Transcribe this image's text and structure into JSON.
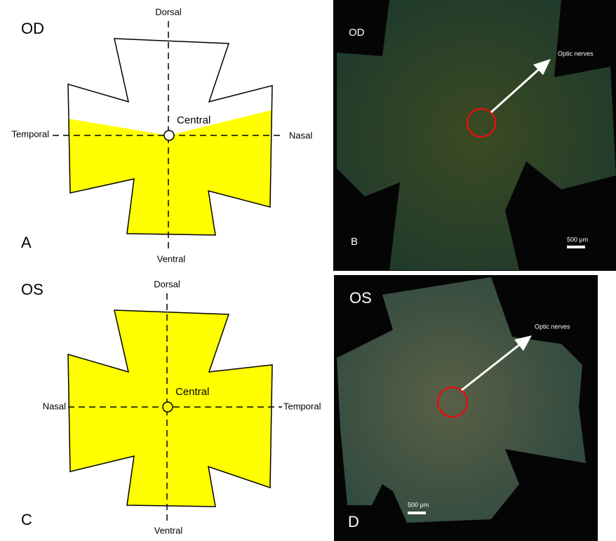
{
  "panels": [
    {
      "letter": "A",
      "eye": "OD",
      "top": "Dorsal",
      "center": "Central",
      "left": "Temporal",
      "right": "Nasal",
      "bottom": "Ventral"
    },
    {
      "letter": "B",
      "eye": "OD",
      "pointer": "Optic nerves",
      "scale": "500 μm"
    },
    {
      "letter": "C",
      "eye": "OS",
      "top": "Dorsal",
      "center": "Central",
      "left": "Nasal",
      "right": "Temporal",
      "bottom": "Ventral"
    },
    {
      "letter": "D",
      "eye": "OS",
      "pointer": "Optic nerves",
      "scale": "500 μm"
    }
  ]
}
